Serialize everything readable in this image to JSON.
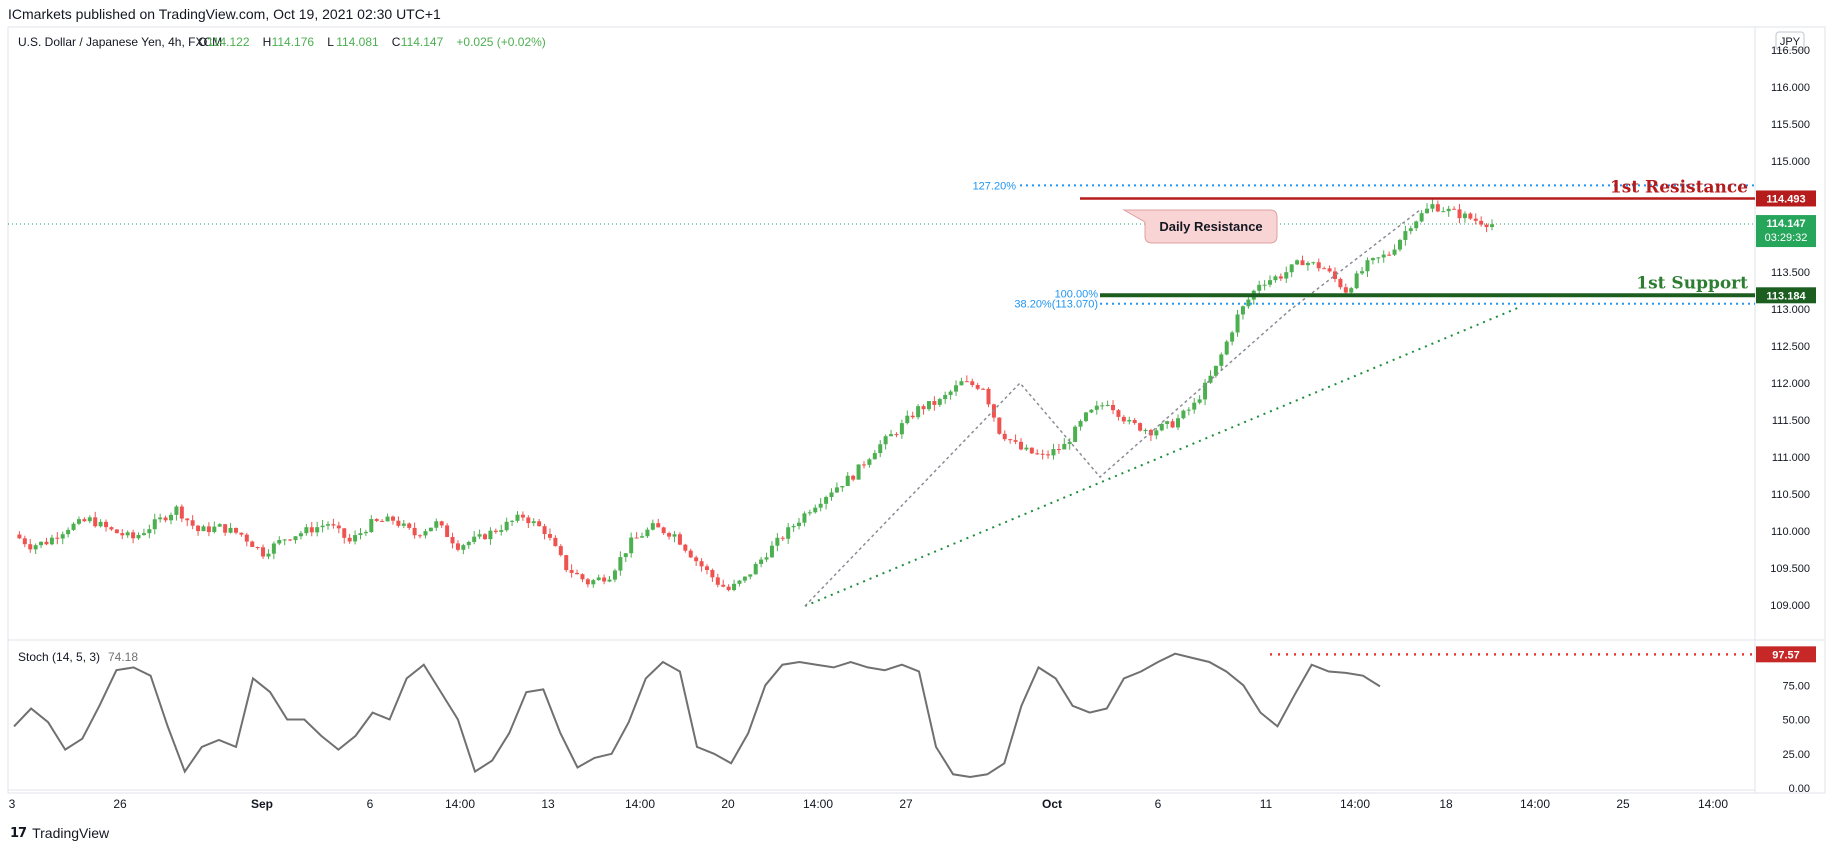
{
  "publisher": "ICmarkets published on TradingView.com, Oct 19, 2021 02:30 UTC+1",
  "brand": "TradingView",
  "colors": {
    "up": "#4caf50",
    "down": "#ef5350",
    "resistance": "#b71c1c",
    "support": "#1b5e20",
    "fib": "#2196f3",
    "stoch_line": "#707070",
    "stoch_level": "#e53935",
    "trendline": "#1e8e3e",
    "last_price_bg": "#26a65b"
  },
  "chart_data": [
    {
      "type": "candlestick",
      "legend": {
        "symbol": "U.S. Dollar / Japanese Yen, 4h, FXCM",
        "o_label": "O",
        "o": "114.122",
        "h_label": "H",
        "h": "114.176",
        "l_label": "L",
        "l": "114.081",
        "c_label": "C",
        "c": "114.147",
        "change": "+0.025 (+0.02%)"
      },
      "currency": "JPY",
      "ylim": [
        108.7,
        116.5
      ],
      "y_ticks": [
        "109.000",
        "109.500",
        "110.000",
        "110.500",
        "111.000",
        "111.500",
        "112.000",
        "112.500",
        "113.000",
        "113.500",
        "114.000",
        "114.500",
        "115.000",
        "115.500",
        "116.000",
        "116.500"
      ],
      "x_ticks": [
        "3",
        "26",
        "Sep",
        "6",
        "14:00",
        "13",
        "14:00",
        "20",
        "14:00",
        "27",
        "Oct",
        "6",
        "11",
        "14:00",
        "18",
        "14:00",
        "25",
        "14:00"
      ],
      "close_path": [
        [
          0,
          109.95
        ],
        [
          3,
          109.8
        ],
        [
          6,
          109.85
        ],
        [
          10,
          110.05
        ],
        [
          14,
          110.15
        ],
        [
          18,
          110.0
        ],
        [
          22,
          109.9
        ],
        [
          26,
          110.1
        ],
        [
          30,
          110.3
        ],
        [
          34,
          110.0
        ],
        [
          38,
          110.05
        ],
        [
          42,
          109.95
        ],
        [
          46,
          109.7
        ],
        [
          50,
          109.9
        ],
        [
          54,
          110.0
        ],
        [
          58,
          110.1
        ],
        [
          62,
          109.85
        ],
        [
          66,
          110.1
        ],
        [
          70,
          110.15
        ],
        [
          74,
          109.95
        ],
        [
          78,
          110.1
        ],
        [
          82,
          109.8
        ],
        [
          86,
          109.9
        ],
        [
          90,
          110.05
        ],
        [
          94,
          110.2
        ],
        [
          98,
          110.0
        ],
        [
          102,
          109.5
        ],
        [
          106,
          109.3
        ],
        [
          110,
          109.4
        ],
        [
          114,
          109.85
        ],
        [
          118,
          110.05
        ],
        [
          122,
          109.95
        ],
        [
          126,
          109.6
        ],
        [
          130,
          109.3
        ],
        [
          132,
          109.2
        ],
        [
          135,
          109.35
        ],
        [
          139,
          109.7
        ],
        [
          143,
          110.0
        ],
        [
          147,
          110.3
        ],
        [
          151,
          110.55
        ],
        [
          155,
          110.75
        ],
        [
          159,
          111.1
        ],
        [
          163,
          111.35
        ],
        [
          167,
          111.65
        ],
        [
          171,
          111.75
        ],
        [
          175,
          112.0
        ],
        [
          179,
          111.95
        ],
        [
          182,
          111.35
        ],
        [
          186,
          111.1
        ],
        [
          190,
          111.0
        ],
        [
          194,
          111.15
        ],
        [
          198,
          111.55
        ],
        [
          202,
          111.75
        ],
        [
          206,
          111.45
        ],
        [
          210,
          111.35
        ],
        [
          214,
          111.45
        ],
        [
          218,
          111.7
        ],
        [
          222,
          112.2
        ],
        [
          226,
          112.9
        ],
        [
          230,
          113.35
        ],
        [
          234,
          113.45
        ],
        [
          238,
          113.65
        ],
        [
          242,
          113.55
        ],
        [
          246,
          113.25
        ],
        [
          250,
          113.6
        ],
        [
          254,
          113.75
        ],
        [
          258,
          114.15
        ],
        [
          262,
          114.4
        ],
        [
          266,
          114.3
        ],
        [
          270,
          114.2
        ],
        [
          273,
          114.147
        ]
      ]
    },
    {
      "type": "line",
      "name": "Stoch (14, 5, 3)",
      "value": "74.18",
      "ylim": [
        0,
        100
      ],
      "y_ticks": [
        "0.00",
        "25.00",
        "50.00",
        "75.00"
      ],
      "values": [
        [
          0,
          45
        ],
        [
          3,
          58
        ],
        [
          6,
          48
        ],
        [
          9,
          28
        ],
        [
          12,
          36
        ],
        [
          15,
          60
        ],
        [
          18,
          86
        ],
        [
          21,
          88
        ],
        [
          24,
          82
        ],
        [
          27,
          45
        ],
        [
          30,
          12
        ],
        [
          33,
          30
        ],
        [
          36,
          35
        ],
        [
          39,
          30
        ],
        [
          42,
          80
        ],
        [
          45,
          70
        ],
        [
          48,
          50
        ],
        [
          51,
          50
        ],
        [
          54,
          38
        ],
        [
          57,
          28
        ],
        [
          60,
          38
        ],
        [
          63,
          55
        ],
        [
          66,
          50
        ],
        [
          69,
          80
        ],
        [
          72,
          90
        ],
        [
          75,
          70
        ],
        [
          78,
          50
        ],
        [
          81,
          12
        ],
        [
          84,
          20
        ],
        [
          87,
          40
        ],
        [
          90,
          70
        ],
        [
          93,
          72
        ],
        [
          96,
          40
        ],
        [
          99,
          15
        ],
        [
          102,
          22
        ],
        [
          105,
          25
        ],
        [
          108,
          48
        ],
        [
          111,
          80
        ],
        [
          114,
          92
        ],
        [
          117,
          85
        ],
        [
          120,
          30
        ],
        [
          123,
          25
        ],
        [
          126,
          18
        ],
        [
          129,
          40
        ],
        [
          132,
          75
        ],
        [
          135,
          90
        ],
        [
          138,
          92
        ],
        [
          141,
          90
        ],
        [
          144,
          88
        ],
        [
          147,
          92
        ],
        [
          150,
          88
        ],
        [
          153,
          86
        ],
        [
          156,
          90
        ],
        [
          159,
          85
        ],
        [
          162,
          30
        ],
        [
          165,
          10
        ],
        [
          168,
          8
        ],
        [
          171,
          10
        ],
        [
          174,
          18
        ],
        [
          177,
          60
        ],
        [
          180,
          88
        ],
        [
          183,
          80
        ],
        [
          186,
          60
        ],
        [
          189,
          55
        ],
        [
          192,
          58
        ],
        [
          195,
          80
        ],
        [
          198,
          85
        ],
        [
          201,
          92
        ],
        [
          204,
          98
        ],
        [
          207,
          95
        ],
        [
          210,
          92
        ],
        [
          213,
          85
        ],
        [
          216,
          75
        ],
        [
          219,
          55
        ],
        [
          222,
          45
        ],
        [
          225,
          68
        ],
        [
          228,
          90
        ],
        [
          231,
          85
        ],
        [
          234,
          84
        ],
        [
          237,
          82
        ],
        [
          240,
          74.18
        ]
      ]
    }
  ],
  "annotations": {
    "resistance_label": "1st Resistance",
    "resistance_price": "114.493",
    "support_label": "1st Support",
    "support_price": "113.184",
    "daily_resistance": "Daily Resistance",
    "fib_127": "127.20%",
    "fib_100": "100.00%",
    "fib_38": "38.20%(113.070)",
    "last_price": "114.147",
    "countdown": "03:29:32",
    "stoch_level_value": "97.57"
  }
}
